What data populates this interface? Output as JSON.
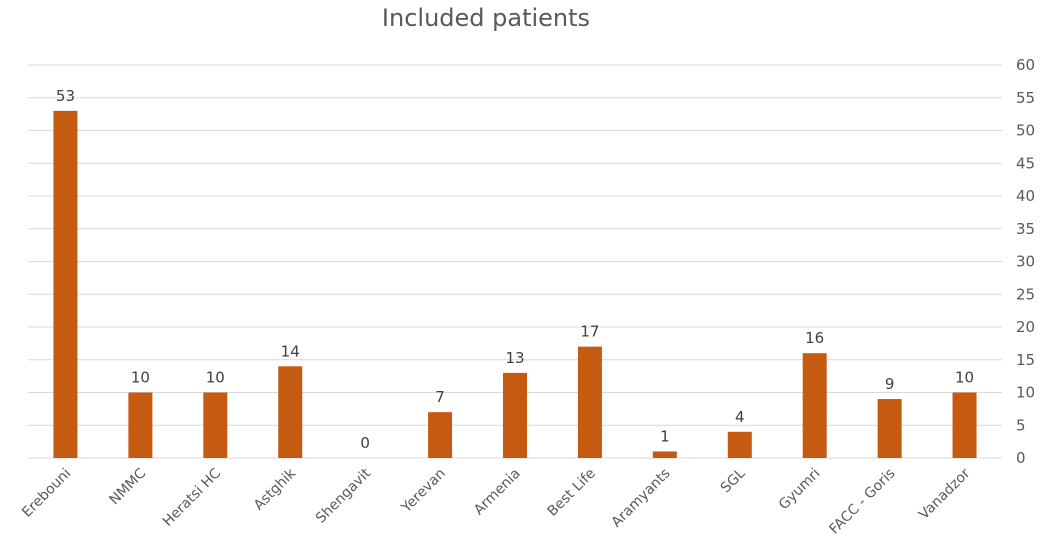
{
  "chart_data": {
    "type": "bar",
    "title": "Included patients",
    "categories": [
      "Erebouni",
      "NMMC",
      "Heratsi HC",
      "Astghik",
      "Shengavit",
      "Yerevan",
      "Armenia",
      "Best Life",
      "Aramyants",
      "SGL",
      "Gyumri",
      "FACC - Goris",
      "Vanadzor"
    ],
    "values": [
      53,
      10,
      10,
      14,
      0,
      7,
      13,
      17,
      1,
      4,
      16,
      9,
      10
    ],
    "ylim": [
      0,
      60
    ],
    "yticks": [
      0,
      5,
      10,
      15,
      20,
      25,
      30,
      35,
      40,
      45,
      50,
      55,
      60
    ],
    "y_axis_side": "right",
    "grid": true,
    "legend": "none",
    "bar_color": "#c55a11"
  }
}
